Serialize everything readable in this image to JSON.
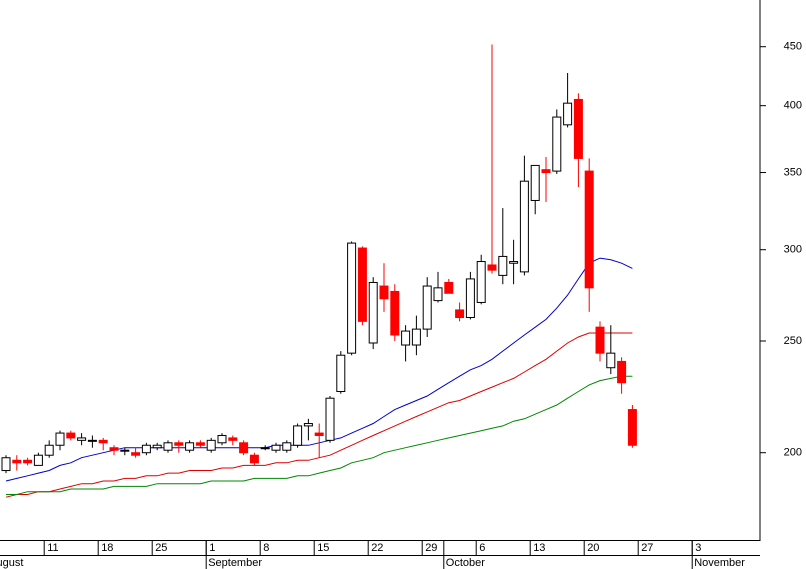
{
  "chart_data": {
    "type": "candlestick",
    "log_scale": true,
    "ylim": [
      168,
      494
    ],
    "yticks": [
      200,
      250,
      300,
      350,
      400,
      450
    ],
    "up_color": "#ffffff",
    "down_color": "#ff0000",
    "open": [
      193,
      197,
      197,
      195,
      199,
      203,
      208,
      205,
      205,
      205,
      202,
      201,
      200,
      200,
      202,
      201,
      204,
      201,
      204,
      201,
      204,
      206,
      204,
      199,
      202,
      201,
      201,
      203,
      211,
      208,
      205,
      226,
      244,
      301,
      249,
      279,
      276,
      248,
      248,
      256,
      271,
      281,
      266,
      262,
      270,
      291,
      285,
      292,
      287,
      331,
      352,
      351,
      385,
      405,
      351,
      257,
      237,
      240,
      218
    ],
    "high": [
      199,
      199,
      198,
      200,
      205,
      209,
      209,
      208,
      207,
      206,
      203,
      202,
      202,
      204,
      204,
      205,
      205,
      205,
      205,
      206,
      208,
      207,
      205,
      200,
      203,
      204,
      205,
      212,
      214,
      212,
      224,
      245,
      305,
      302,
      284,
      292,
      280,
      258,
      263,
      284,
      287,
      283,
      270,
      287,
      297,
      452,
      326,
      306,
      362,
      355,
      361,
      397,
      427,
      410,
      360,
      260,
      258,
      242,
      220
    ],
    "low": [
      192,
      193,
      195,
      195,
      198,
      201,
      205,
      203,
      202,
      201,
      199,
      199,
      198,
      199,
      201,
      200,
      200,
      200,
      202,
      200,
      203,
      203,
      199,
      195,
      201,
      200,
      200,
      202,
      205,
      198,
      204,
      225,
      243,
      258,
      246,
      265,
      250,
      240,
      243,
      252,
      270,
      275,
      260,
      261,
      269,
      286,
      280,
      280,
      285,
      322,
      330,
      349,
      383,
      340,
      265,
      240,
      234,
      225,
      202
    ],
    "close": [
      198,
      196,
      196,
      199,
      203,
      208,
      206,
      206,
      205,
      204,
      201,
      201,
      199,
      203,
      203,
      204,
      203,
      204,
      203,
      205,
      207,
      205,
      200,
      196,
      202,
      203,
      204,
      211,
      212,
      207,
      223,
      243,
      304,
      260,
      281,
      272,
      253,
      255,
      256,
      279,
      278,
      275,
      262,
      283,
      293,
      288,
      296,
      293,
      344,
      355,
      350,
      391,
      402,
      360,
      278,
      244,
      244,
      230,
      203
    ],
    "series": [
      {
        "color": "#0000cc",
        "values": [
          189,
          190,
          191,
          192,
          193,
          195,
          196,
          198,
          199,
          200,
          201,
          202,
          202,
          202,
          202,
          202,
          202,
          202,
          202,
          202,
          202,
          202,
          202,
          202,
          202,
          203,
          203,
          203,
          203,
          204,
          205,
          206,
          208,
          210,
          212,
          215,
          218,
          220,
          222,
          224,
          227,
          230,
          233,
          236,
          238,
          241,
          245,
          249,
          253,
          257,
          261,
          267,
          274,
          283,
          292,
          295,
          294,
          292,
          289
        ]
      },
      {
        "color": "#dd0000",
        "values": [
          183,
          184,
          184,
          185,
          185,
          186,
          187,
          188,
          188,
          189,
          189,
          190,
          190,
          191,
          191,
          192,
          192,
          193,
          193,
          193,
          194,
          194,
          195,
          195,
          195,
          196,
          196,
          197,
          197,
          198,
          199,
          201,
          203,
          205,
          207,
          209,
          211,
          213,
          215,
          217,
          219,
          221,
          222,
          224,
          226,
          228,
          230,
          232,
          235,
          238,
          241,
          245,
          249,
          252,
          254,
          254,
          254,
          254,
          254
        ]
      },
      {
        "color": "#008800",
        "values": [
          184,
          184,
          185,
          185,
          185,
          185,
          186,
          186,
          186,
          186,
          187,
          187,
          187,
          187,
          188,
          188,
          188,
          188,
          188,
          189,
          189,
          189,
          189,
          190,
          190,
          190,
          190,
          191,
          191,
          192,
          193,
          194,
          196,
          197,
          198,
          200,
          201,
          202,
          203,
          204,
          205,
          206,
          207,
          208,
          209,
          210,
          211,
          213,
          214,
          216,
          218,
          220,
          223,
          226,
          229,
          231,
          232,
          233,
          233
        ]
      }
    ],
    "xticks": [
      {
        "value": 4,
        "label": "11"
      },
      {
        "value": 9,
        "label": "18"
      },
      {
        "value": 14,
        "label": "25"
      },
      {
        "value": 19,
        "label": "1"
      },
      {
        "value": 24,
        "label": "8"
      },
      {
        "value": 29,
        "label": "15"
      },
      {
        "value": 34,
        "label": "22"
      },
      {
        "value": 39,
        "label": "29"
      },
      {
        "value": 44,
        "label": "6"
      },
      {
        "value": 49,
        "label": "13"
      },
      {
        "value": 54,
        "label": "20"
      },
      {
        "value": 59,
        "label": "27"
      },
      {
        "value": 64,
        "label": "3"
      }
    ],
    "month_ticks": [
      {
        "value": -0.6,
        "label": "ugust"
      },
      {
        "value": 19,
        "label": "September"
      },
      {
        "value": 41,
        "label": "October"
      },
      {
        "value": 64,
        "label": "November"
      }
    ]
  }
}
